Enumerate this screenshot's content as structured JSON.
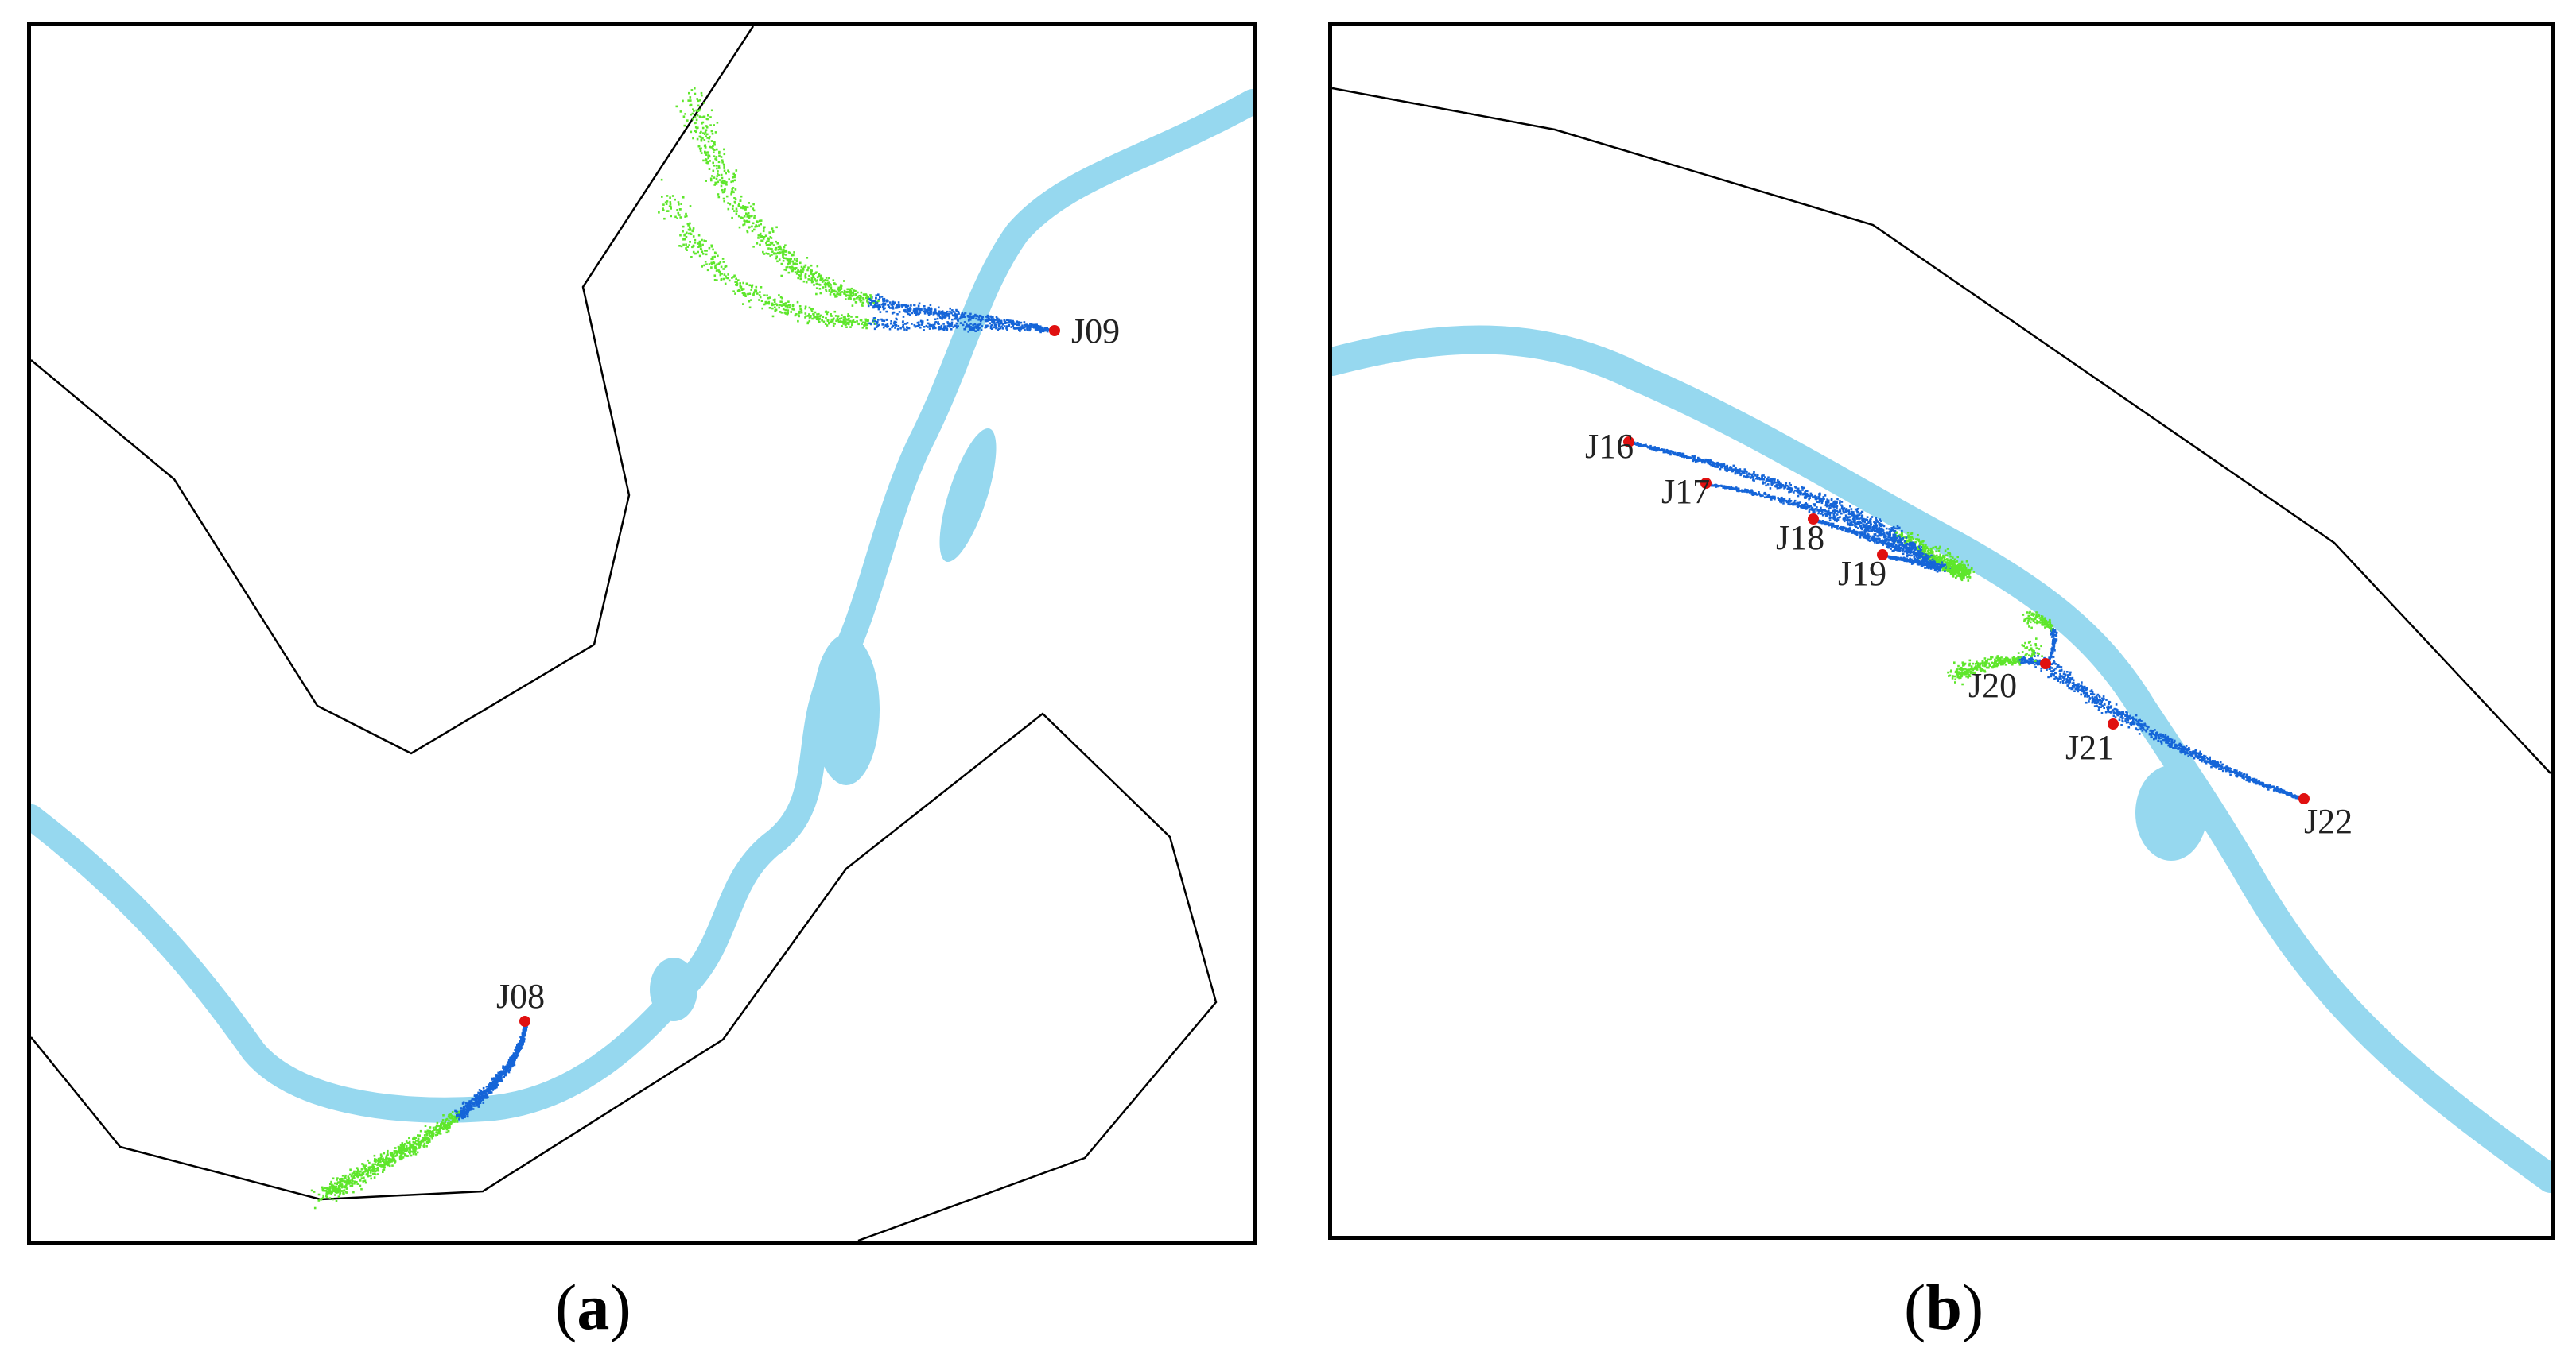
{
  "panels": [
    {
      "id": "a",
      "caption_open": "(",
      "caption_letter": "a",
      "caption_close": ")",
      "sites": [
        "J08",
        "J09"
      ]
    },
    {
      "id": "b",
      "caption_open": "(",
      "caption_letter": "b",
      "caption_close": ")",
      "sites": [
        "J16",
        "J17",
        "J18",
        "J19",
        "J20",
        "J21",
        "J22"
      ]
    }
  ],
  "colors": {
    "river": "#96d8ef",
    "trace_near": "#1565d8",
    "trace_far": "#5ee62b",
    "site_marker": "#e01010",
    "boundary": "#000000"
  }
}
